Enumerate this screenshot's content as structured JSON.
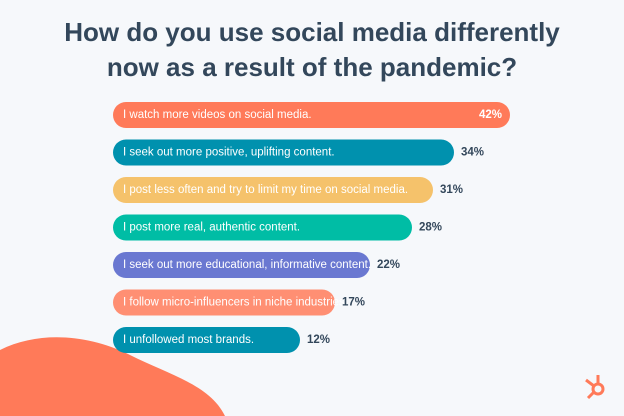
{
  "chart_data": {
    "type": "bar",
    "title": [
      "How do you use social media differently",
      "now as a result of the pandemic?"
    ],
    "categories": [
      "I watch more videos on social media.",
      "I seek out more positive, uplifting content.",
      "I post less often and try to limit my time on social media.",
      "I post more real, authentic content.",
      "I seek out more educational, informative content.",
      "I follow micro-influencers in niche industries.",
      "I unfollowed most brands."
    ],
    "values": [
      42,
      34,
      31,
      28,
      22,
      17,
      12
    ],
    "value_labels": [
      "42%",
      "34%",
      "31%",
      "28%",
      "22%",
      "17%",
      "12%"
    ],
    "colors": [
      "#ff7a59",
      "#0091ae",
      "#f5c26b",
      "#00bda5",
      "#6a78d1",
      "#ff8f73",
      "#0091ae"
    ]
  }
}
